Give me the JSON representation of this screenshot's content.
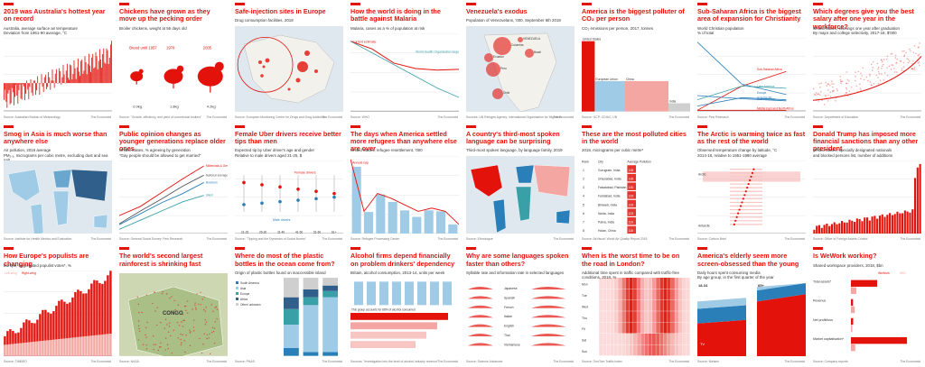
{
  "brand": "The Economist",
  "colors": {
    "red": "#e3120b",
    "pink": "#f4a6a3",
    "lightred": "#f7c5c2",
    "blue": "#2a7fb8",
    "lightblue": "#9fcbe6",
    "teal": "#3aa0a8",
    "grey": "#cfcfcf",
    "dark": "#333333"
  },
  "tiles": [
    {
      "title": "2019 was Australia's hottest year on record",
      "subtitle": "Australia, average surface air temperature\nDeviation from 1961-90 average, °C",
      "source": "Source: Australian Bureau of Meteorology",
      "icon": "bar-chart"
    },
    {
      "title": "Chickens have grown as they move up the pecking order",
      "subtitle": "Broiler chickens, weight at 56 days old",
      "source": "Source: \"Growth, efficiency, and yield of commercial broilers\"",
      "icon": "chicken-silhouettes",
      "labels": [
        "Breed until 1957",
        "1978",
        "2005"
      ],
      "weights": [
        "0.9kg",
        "1.8kg",
        "4.2kg"
      ]
    },
    {
      "title": "Safe-injection sites in Europe",
      "subtitle": "Drug consumption facilities, 2018",
      "source": "Source: European Monitoring Centre for Drugs and Drug Addiction",
      "icon": "map-europe"
    },
    {
      "title": "How the world is doing in the battle against Malaria",
      "subtitle": "Malaria, cases as a % of population at risk",
      "source": "Source: WHO",
      "icon": "line-chart",
      "notes": [
        "Current estimate",
        "World Health Organisation target",
        "Expected trend"
      ]
    },
    {
      "title": "Venezuela's exodus",
      "subtitle": "Population of Venezuelans, '000, September 6th 2019",
      "source": "Sources: UN Refugee Agency; International Organisation for Migration",
      "icon": "map-americas",
      "places": [
        "Colombia",
        "Peru",
        "Ecuador",
        "Chile",
        "Brazil",
        "VENEZUELA"
      ]
    },
    {
      "title": "America is the biggest polluter of CO₂ per person",
      "subtitle": "CO₂ emissions per person, 2017, tonnes",
      "source": "Source: GCP; CDIAC; UN",
      "icon": "area-steps",
      "labels": [
        "United States",
        "European Union",
        "China",
        "India"
      ]
    },
    {
      "title": "Sub-Saharan Africa is the biggest area of expansion for Christianity",
      "subtitle": "World Christian population\n% of total",
      "source": "Source: Pew Research",
      "icon": "line-chart",
      "labels": [
        "Sub-Saharan Africa",
        "Latin America",
        "Europe",
        "Asia-Pacific",
        "North America",
        "Middle East and North Africa"
      ]
    },
    {
      "title": "Which degrees give you the best salary after one year in the workforce?",
      "subtitle": "United States, earnings one year after graduation\nBy major and college selectivity, 2017-18, $'000",
      "source": "Source: Department of Education",
      "icon": "scatter-plot"
    },
    {
      "title": "Smog in Asia is much worse than anywhere else",
      "subtitle": "Air pollution, 2016 average\nPM₂.₅, micrograms per cubic metre, excluding dust and sea salt",
      "source": "Source: Institute for Health Metrics and Evaluation",
      "icon": "map-world"
    },
    {
      "title": "Public opinion changes as younger generations replace older ones",
      "subtitle": "United States, % agreeing by generation\n\"Gay people should be allowed to get married\"",
      "source": "Source: General Social Survey; Pew Research",
      "icon": "line-chart",
      "labels": [
        "Millennials & Gen Z",
        "National average",
        "Silent",
        "Boomers"
      ]
    },
    {
      "title": "Female Uber drivers receive better tips than men",
      "subtitle": "Expected tip by Uber driver's age and gender\nRelative to male drivers aged 21-25, $",
      "source": "Source: \"Tipping and the Dynamics of Social Norms\"",
      "icon": "dot-plot",
      "labels": [
        "Female drivers",
        "Male drivers"
      ],
      "ages": [
        "21-25",
        "26-30",
        "31-40",
        "41-50",
        "51-60",
        "61+"
      ]
    },
    {
      "title": "The days when America settled more refugees than anywhere else are over",
      "subtitle": "United States, refugee resettlement, '000",
      "source": "Source: Refugee Processing Center",
      "icon": "bar-line-chart",
      "notes": [
        "Annual cap"
      ]
    },
    {
      "title": "A country's third-most spoken language can be surprising",
      "subtitle": "Third-most spoken language, by language family, 2019",
      "source": "Source: Ethnologue",
      "icon": "map-world",
      "legend": [
        "Afro-Asiatic",
        "Indo-European",
        "Niger-Congo",
        "Sino-Tibetan",
        "Other"
      ]
    },
    {
      "title": "These are the most polluted cities in the world",
      "subtitle": "2018, micrograms per cubic metre*",
      "source": "Source: AirVisual; World Air Quality Report 2018",
      "icon": "table",
      "headers": [
        "Rank",
        "City",
        "Average Pollution"
      ],
      "rows": [
        [
          "1",
          "Gurugram, India",
          "135"
        ],
        [
          "2",
          "Ghaziabad, India",
          "135"
        ],
        [
          "3",
          "Faisalabad, Pakistan",
          "130"
        ],
        [
          "4",
          "Faridabad, India",
          "129"
        ],
        [
          "5",
          "Bhiwadi, India",
          "125"
        ],
        [
          "6",
          "Noida, India",
          "123"
        ],
        [
          "7",
          "Patna, India",
          "119"
        ],
        [
          "8",
          "Hotan, China",
          "116"
        ]
      ]
    },
    {
      "title": "The Arctic is warming twice as fast as the rest of the world",
      "subtitle": "Observed temperature change by latitude, °C\n2014-18, relative to 1951-1980 average",
      "source": "Source: Carbon Brief",
      "icon": "dot-range-chart",
      "legend": [
        "Average",
        "Range"
      ],
      "labels": [
        "Arctic",
        "Antarctic"
      ]
    },
    {
      "title": "Donald Trump has imposed more financial sanctions than any other president",
      "subtitle": "United States, specially designated nationals\nand blocked persons list, number of additions",
      "source": "Source: Office of Foreign Assets Control",
      "icon": "bar-chart"
    },
    {
      "title": "How Europe's populists are changing",
      "subtitle": "Europe, aggregated populist votes*, %",
      "source": "Source: TIMBRO",
      "icon": "stacked-bars",
      "legend": [
        "Left-wing",
        "Right-wing"
      ]
    },
    {
      "title": "The world's second largest rainforest is shrinking fast",
      "subtitle": "",
      "source": "Source: NASA",
      "icon": "map-congo",
      "labels": [
        "CONGO",
        "Congo, active fires"
      ]
    },
    {
      "title": "Where do most of the plastic bottles in the ocean come from?",
      "subtitle": "Origin of plastic bottles found on inaccessible island",
      "source": "Source: PNAS",
      "icon": "stacked-bars",
      "legend": [
        "South America",
        "Asia",
        "Europe",
        "Africa",
        "Other/ unknown"
      ]
    },
    {
      "title": "Alcohol firms depend financially on problem drinkers' dependency",
      "subtitle": "Britain, alcohol consumption, 2013-14, units per week",
      "source": "Sources: \"Investigation into the level of alcohol industry revenue\"",
      "icon": "bar-chart",
      "notes": [
        "This group accounts for 68% of alcohol consumed",
        "They drink 9% of alcohol consumed"
      ]
    },
    {
      "title": "Why are some languages spoken faster than others?",
      "subtitle": "Syllable rate and information rate in selected languages",
      "source": "Source: Science Advances",
      "icon": "ridgeline-chart",
      "languages": [
        "Japanese",
        "Spanish",
        "French",
        "Italian",
        "English",
        "Thai",
        "Vietnamese"
      ]
    },
    {
      "title": "When is the worst time to be on the road in London?",
      "subtitle": "Additional time spent in traffic compared with traffic-free conditions, 2018, %",
      "source": "Source: TomTom Traffic Index",
      "icon": "heatmap",
      "days": [
        "Mon",
        "Tue",
        "Wed",
        "Thu",
        "Fri",
        "Sat",
        "Sun"
      ]
    },
    {
      "title": "America's elderly seem more screen-obsessed than the young",
      "subtitle": "Daily hours spent consuming media\nBy age group, in the first quarter of the year",
      "source": "Source: Nielsen",
      "icon": "area-chart",
      "groups": [
        "18-34",
        "65+"
      ],
      "labels": [
        "Computer",
        "Smartphone",
        "TV"
      ]
    },
    {
      "title": "Is WeWork working?",
      "subtitle": "Shared workspace providers, 2018, $bn",
      "source": "Source: Company reports",
      "icon": "bar-chart",
      "legend": [
        "WeWork",
        "IWG"
      ],
      "rows": [
        "Total assets*",
        "Revenue",
        "Net profit/loss",
        "Market capitalisation*"
      ]
    }
  ],
  "chart_data": [
    {
      "type": "bar",
      "title": "2019 was Australia's hottest year on record",
      "ylabel": "Deviation from 1961-90 average, °C",
      "x": [
        1910,
        1920,
        1930,
        1940,
        1950,
        1960,
        1970,
        1980,
        1990,
        2000,
        2010,
        2019
      ],
      "values": [
        -0.5,
        -0.3,
        -0.4,
        -0.2,
        -0.3,
        -0.1,
        0.0,
        0.2,
        0.3,
        0.4,
        0.8,
        1.5
      ]
    },
    {
      "type": "line",
      "title": "How the world is doing in the battle against Malaria",
      "series": [
        {
          "name": "Current estimate",
          "values": [
            9.0,
            8.0,
            6.2,
            5.5,
            5.3,
            5.4
          ]
        },
        {
          "name": "World Health Organisation target",
          "values": [
            9.0,
            7.5,
            6.0,
            4.5,
            3.0,
            1.8
          ]
        }
      ]
    },
    {
      "type": "bar",
      "title": "America is the biggest polluter of CO₂ per person",
      "categories": [
        "United States",
        "European Union",
        "China",
        "India"
      ],
      "values": [
        16.2,
        7.0,
        7.0,
        1.9
      ]
    },
    {
      "type": "line",
      "title": "Sub-Saharan Africa is the biggest area of expansion for Christianity",
      "x": [
        1910,
        2010,
        2050
      ],
      "series": [
        {
          "name": "Sub-Saharan Africa",
          "values": [
            1,
            24,
            38
          ]
        },
        {
          "name": "Latin America",
          "values": [
            11,
            24,
            22
          ]
        },
        {
          "name": "Europe",
          "values": [
            66,
            26,
            16
          ]
        },
        {
          "name": "Asia-Pacific",
          "values": [
            5,
            13,
            11
          ]
        },
        {
          "name": "North America",
          "values": [
            15,
            12,
            10
          ]
        },
        {
          "name": "Middle East and North Africa",
          "values": [
            1,
            1,
            1
          ]
        }
      ]
    },
    {
      "type": "line",
      "title": "Public opinion changes as younger generations replace older ones",
      "x": [
        1988,
        1996,
        2004,
        2012,
        2018
      ],
      "series": [
        {
          "name": "Millennials & Gen Z",
          "values": [
            20,
            30,
            45,
            60,
            74
          ]
        },
        {
          "name": "National average",
          "values": [
            11,
            25,
            38,
            52,
            64
          ]
        },
        {
          "name": "Boomers",
          "values": [
            10,
            22,
            34,
            44,
            56
          ]
        },
        {
          "name": "Silent",
          "values": [
            5,
            15,
            25,
            35,
            42
          ]
        }
      ]
    },
    {
      "type": "bar",
      "title": "The days when America settled more refugees than anywhere else are over",
      "x": [
        1980,
        1985,
        1990,
        1995,
        2000,
        2005,
        2010,
        2015,
        2019
      ],
      "values": [
        207,
        68,
        122,
        99,
        73,
        53,
        73,
        70,
        30
      ]
    },
    {
      "type": "table",
      "title": "These are the most polluted cities in the world",
      "categories": [
        "Gurugram, India",
        "Ghaziabad, India",
        "Faisalabad, Pakistan",
        "Faridabad, India",
        "Bhiwadi, India",
        "Noida, India",
        "Patna, India",
        "Hotan, China"
      ],
      "values": [
        135,
        135,
        130,
        129,
        125,
        123,
        119,
        116
      ]
    },
    {
      "type": "bar",
      "title": "Donald Trump has imposed more financial sanctions than any other president",
      "x": [
        2001,
        2004,
        2007,
        2010,
        2013,
        2016,
        2019
      ],
      "values": [
        80,
        220,
        300,
        350,
        420,
        500,
        1000
      ]
    },
    {
      "type": "bar",
      "title": "Is WeWork working?",
      "categories": [
        "Total assets*",
        "Revenue",
        "Net profit/loss",
        "Market capitalisation*"
      ],
      "series": [
        {
          "name": "WeWork",
          "values": [
            22,
            1.8,
            -1.9,
            47
          ]
        },
        {
          "name": "IWG",
          "values": [
            4.5,
            3.2,
            0.2,
            3.6
          ]
        }
      ]
    }
  ]
}
